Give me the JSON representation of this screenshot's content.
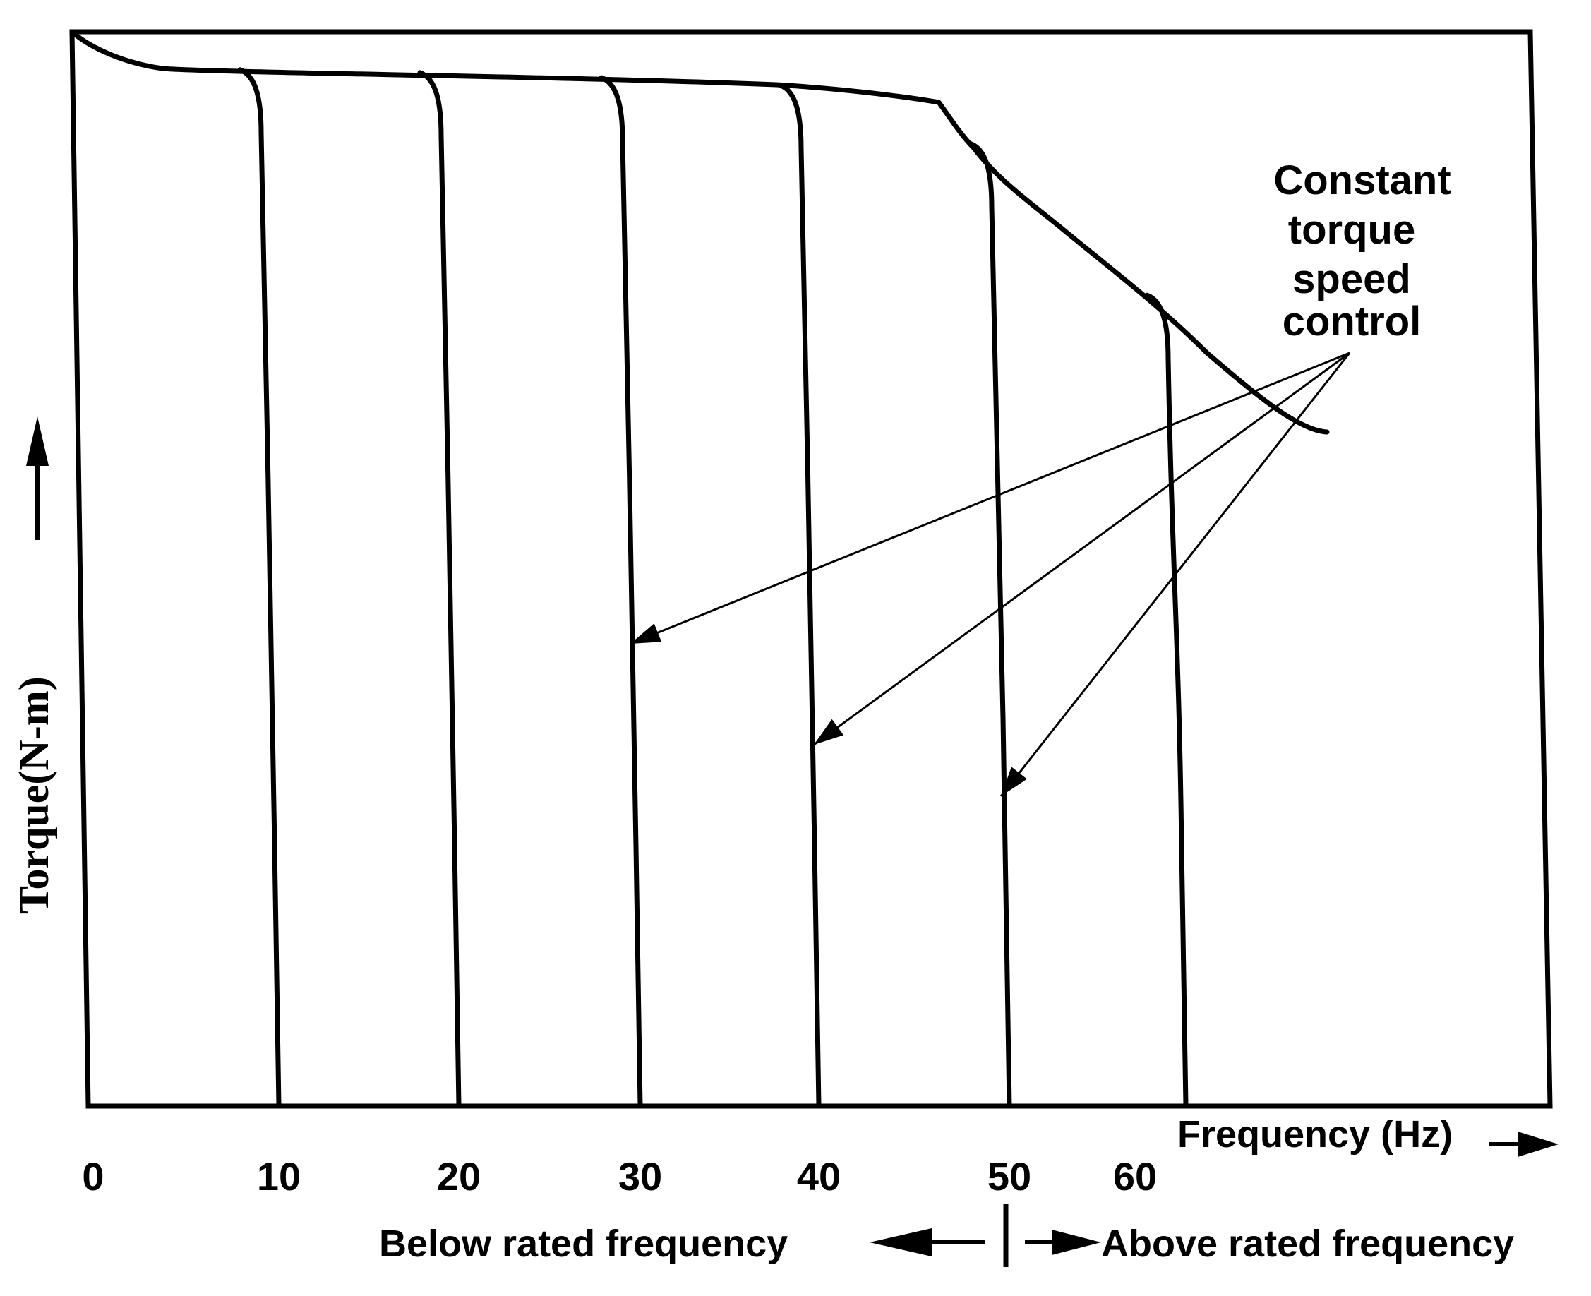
{
  "chart_data": {
    "type": "line",
    "title": "",
    "xlabel": "Frequency (Hz)",
    "ylabel": "Torque(N-m)",
    "x_ticks": [
      "0",
      "10",
      "20",
      "30",
      "40",
      "50",
      "60"
    ],
    "xlim": [
      0,
      80
    ],
    "grid": false,
    "regions": {
      "below": "Below rated frequency",
      "above": "Above rated frequency",
      "boundary_frequency": 50
    },
    "annotation": {
      "lines": [
        "Constant",
        "torque",
        "speed",
        "control"
      ],
      "targets_hz": [
        30,
        40,
        50
      ]
    },
    "series": [
      {
        "name": "10 Hz",
        "frequency": 10
      },
      {
        "name": "20 Hz",
        "frequency": 20
      },
      {
        "name": "30 Hz",
        "frequency": 30
      },
      {
        "name": "40 Hz",
        "frequency": 40
      },
      {
        "name": "50 Hz",
        "frequency": 50
      },
      {
        "name": "60 Hz",
        "frequency": 60
      }
    ]
  }
}
